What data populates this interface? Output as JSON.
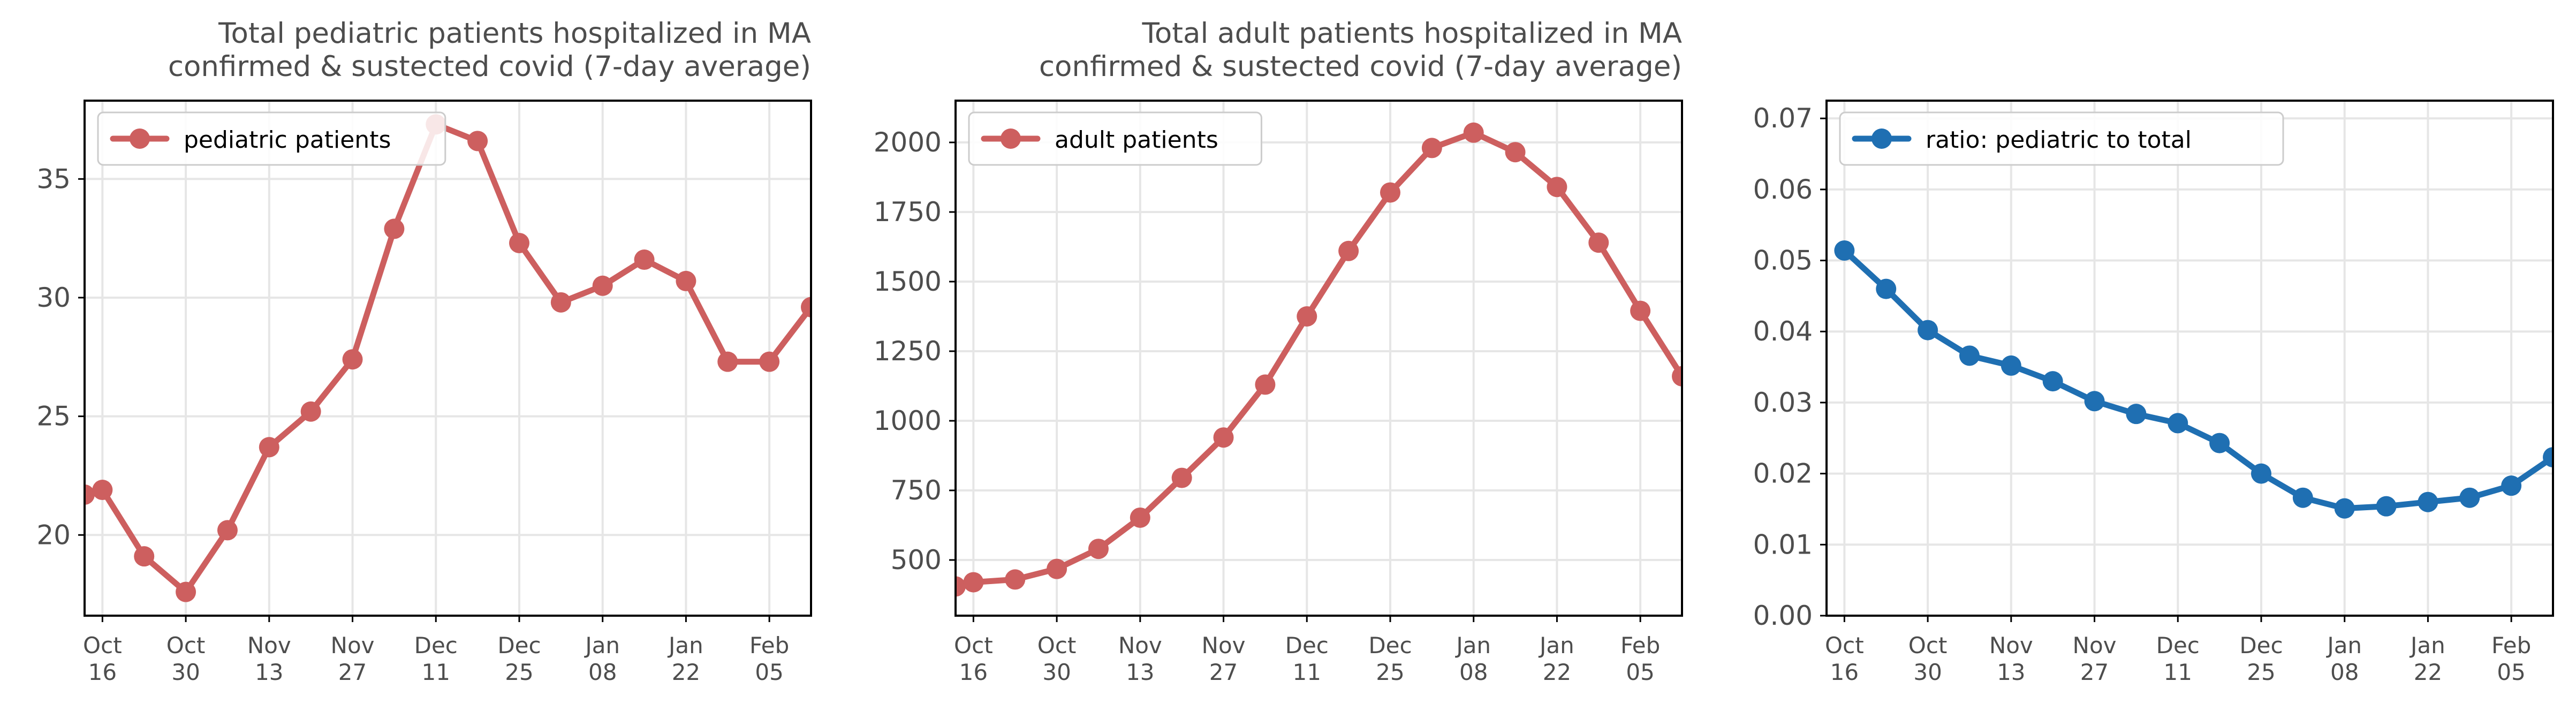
{
  "chart_data": [
    {
      "type": "line",
      "title": "Total pediatric patients hospitalized in MA\nconfirmed & sustected covid (7-day average)",
      "xlabel": "",
      "ylabel": "",
      "x": [
        "2021-10-13",
        "2021-10-16",
        "2021-10-23",
        "2021-10-30",
        "2021-11-06",
        "2021-11-13",
        "2021-11-20",
        "2021-11-27",
        "2021-12-04",
        "2021-12-11",
        "2021-12-18",
        "2021-12-25",
        "2022-01-01",
        "2022-01-08",
        "2022-01-15",
        "2022-01-22",
        "2022-01-29",
        "2022-02-05",
        "2022-02-12"
      ],
      "xlim": [
        "2021-10-13",
        "2022-02-12"
      ],
      "x_ticks": [
        "2021-10-16",
        "2021-10-30",
        "2021-11-13",
        "2021-11-27",
        "2021-12-11",
        "2021-12-25",
        "2022-01-08",
        "2022-01-22",
        "2022-02-05"
      ],
      "x_tick_labels": [
        [
          "Oct",
          "16"
        ],
        [
          "Oct",
          "30"
        ],
        [
          "Nov",
          "13"
        ],
        [
          "Nov",
          "27"
        ],
        [
          "Dec",
          "11"
        ],
        [
          "Dec",
          "25"
        ],
        [
          "Jan",
          "08"
        ],
        [
          "Jan",
          "22"
        ],
        [
          "Feb",
          "05"
        ]
      ],
      "series": [
        {
          "name": "pediatric patients",
          "color": "#cd5f5f",
          "values": [
            21.7,
            21.9,
            19.1,
            17.6,
            20.2,
            23.7,
            25.2,
            27.4,
            32.9,
            37.3,
            36.6,
            32.3,
            29.8,
            30.5,
            31.6,
            30.7,
            27.3,
            27.3,
            29.6
          ]
        }
      ],
      "ylim": [
        16.6,
        38.3
      ],
      "y_ticks": [
        20,
        25,
        30,
        35
      ],
      "y_tick_labels": [
        "20",
        "25",
        "30",
        "35"
      ],
      "grid": true,
      "legend": "top-left"
    },
    {
      "type": "line",
      "title": "Total adult patients hospitalized in MA\nconfirmed & sustected covid (7-day average)",
      "xlabel": "",
      "ylabel": "",
      "x": [
        "2021-10-13",
        "2021-10-16",
        "2021-10-23",
        "2021-10-30",
        "2021-11-06",
        "2021-11-13",
        "2021-11-20",
        "2021-11-27",
        "2021-12-04",
        "2021-12-11",
        "2021-12-18",
        "2021-12-25",
        "2022-01-01",
        "2022-01-08",
        "2022-01-15",
        "2022-01-22",
        "2022-01-29",
        "2022-02-05",
        "2022-02-12"
      ],
      "xlim": [
        "2021-10-13",
        "2022-02-12"
      ],
      "x_ticks": [
        "2021-10-16",
        "2021-10-30",
        "2021-11-13",
        "2021-11-27",
        "2021-12-11",
        "2021-12-25",
        "2022-01-08",
        "2022-01-22",
        "2022-02-05"
      ],
      "x_tick_labels": [
        [
          "Oct",
          "16"
        ],
        [
          "Oct",
          "30"
        ],
        [
          "Nov",
          "13"
        ],
        [
          "Nov",
          "27"
        ],
        [
          "Dec",
          "11"
        ],
        [
          "Dec",
          "25"
        ],
        [
          "Jan",
          "08"
        ],
        [
          "Jan",
          "22"
        ],
        [
          "Feb",
          "05"
        ]
      ],
      "series": [
        {
          "name": "adult patients",
          "color": "#cd5f5f",
          "values": [
            405,
            420,
            430,
            468,
            540,
            652,
            795,
            940,
            1130,
            1375,
            1610,
            1820,
            1980,
            2035,
            1965,
            1840,
            1640,
            1395,
            1160
          ]
        }
      ],
      "ylim": [
        300,
        2150
      ],
      "y_ticks": [
        500,
        750,
        1000,
        1250,
        1500,
        1750,
        2000
      ],
      "y_tick_labels": [
        "500",
        "750",
        "1000",
        "1250",
        "1500",
        "1750",
        "2000"
      ],
      "grid": true,
      "legend": "top-left"
    },
    {
      "type": "line",
      "title": "",
      "xlabel": "",
      "ylabel": "",
      "x": [
        "2021-10-16",
        "2021-10-23",
        "2021-10-30",
        "2021-11-06",
        "2021-11-13",
        "2021-11-20",
        "2021-11-27",
        "2021-12-04",
        "2021-12-11",
        "2021-12-18",
        "2021-12-25",
        "2022-01-01",
        "2022-01-08",
        "2022-01-15",
        "2022-01-22",
        "2022-01-29",
        "2022-02-05",
        "2022-02-12"
      ],
      "xlim": [
        "2021-10-13",
        "2022-02-12"
      ],
      "x_ticks": [
        "2021-10-16",
        "2021-10-30",
        "2021-11-13",
        "2021-11-27",
        "2021-12-11",
        "2021-12-25",
        "2022-01-08",
        "2022-01-22",
        "2022-02-05"
      ],
      "x_tick_labels": [
        [
          "Oct",
          "16"
        ],
        [
          "Oct",
          "30"
        ],
        [
          "Nov",
          "13"
        ],
        [
          "Nov",
          "27"
        ],
        [
          "Dec",
          "11"
        ],
        [
          "Dec",
          "25"
        ],
        [
          "Jan",
          "08"
        ],
        [
          "Jan",
          "22"
        ],
        [
          "Feb",
          "05"
        ]
      ],
      "series": [
        {
          "name": "ratio: pediatric to total",
          "color": "#1f6fb2",
          "values": [
            0.0514,
            0.046,
            0.0402,
            0.0366,
            0.0352,
            0.033,
            0.0302,
            0.0284,
            0.0271,
            0.0243,
            0.02,
            0.0166,
            0.0151,
            0.0154,
            0.016,
            0.0166,
            0.0183,
            0.0223
          ]
        }
      ],
      "ylim": [
        0.0,
        0.0725
      ],
      "y_ticks": [
        0.0,
        0.01,
        0.02,
        0.03,
        0.04,
        0.05,
        0.06,
        0.07
      ],
      "y_tick_labels": [
        "0.00",
        "0.01",
        "0.02",
        "0.03",
        "0.04",
        "0.05",
        "0.06",
        "0.07"
      ],
      "grid": true,
      "legend": "top-left"
    }
  ]
}
